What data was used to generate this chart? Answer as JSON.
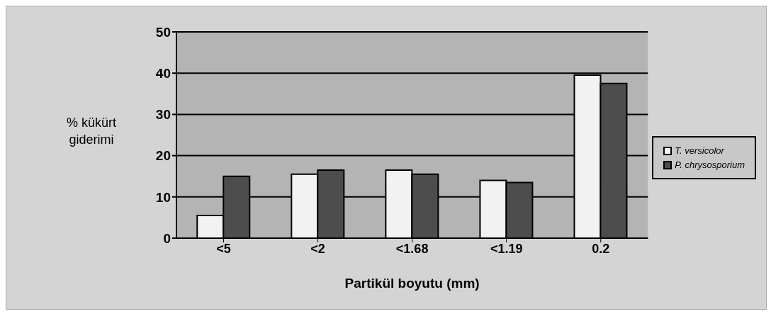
{
  "chart_data": {
    "type": "bar",
    "xlabel": "Partikül boyutu (mm)",
    "ylabel": "% kükürt giderimi",
    "categories": [
      "<5",
      "<2",
      "<1.68",
      "<1.19",
      "0.2"
    ],
    "series": [
      {
        "name": "T. versicolor",
        "color": "#f2f2f2",
        "values": [
          5.5,
          15.5,
          16.5,
          14,
          39.5
        ]
      },
      {
        "name": "P. chrysosporium",
        "color": "#4d4d4d",
        "values": [
          15,
          16.5,
          15.5,
          13.5,
          37.5
        ]
      }
    ],
    "ylim": [
      0,
      50
    ],
    "yticks": [
      0,
      10,
      20,
      30,
      40,
      50
    ],
    "grid": "y",
    "legend": "right"
  }
}
